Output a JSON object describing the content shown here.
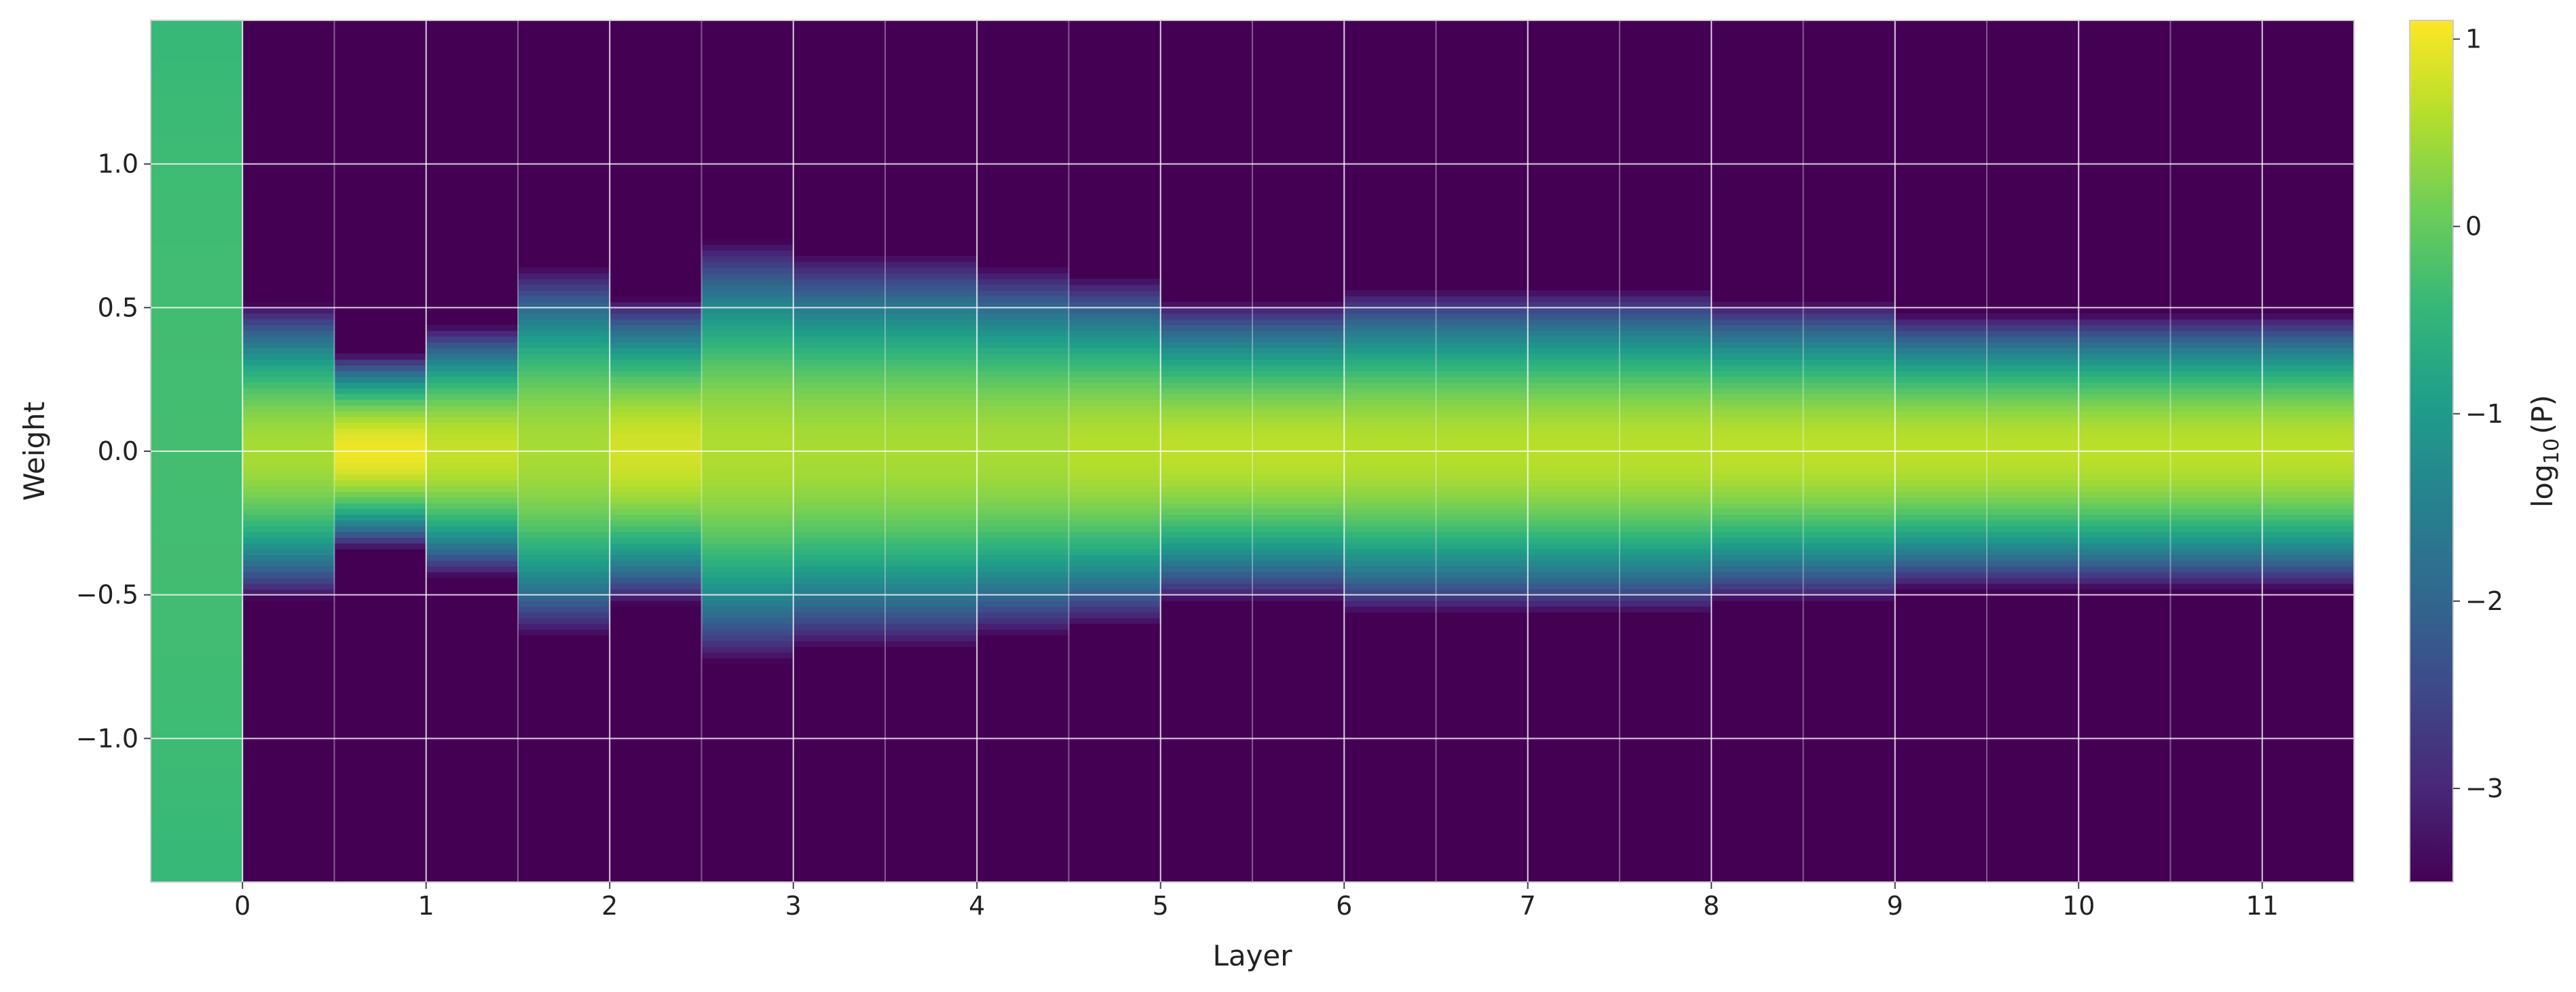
{
  "chart_data": {
    "type": "heatmap",
    "title": "",
    "xlabel": "Layer",
    "ylabel": "Weight",
    "xlim": [
      -0.5,
      11.5
    ],
    "ylim": [
      -1.5,
      1.5
    ],
    "x_ticks": [
      0,
      1,
      2,
      3,
      4,
      5,
      6,
      7,
      8,
      9,
      10,
      11
    ],
    "x_tick_labels": [
      "0",
      "1",
      "2",
      "3",
      "4",
      "5",
      "6",
      "7",
      "8",
      "9",
      "10",
      "11"
    ],
    "y_ticks": [
      -1.0,
      -0.5,
      0.0,
      0.5,
      1.0
    ],
    "y_tick_labels": [
      "−1.0",
      "−0.5",
      "0.0",
      "0.5",
      "1.0"
    ],
    "grid": true,
    "colormap": "viridis",
    "colorbar": {
      "label_main": "log",
      "label_sub": "10",
      "label_arg": "(P)",
      "range": [
        -3.5,
        1.1
      ],
      "ticks": [
        -3,
        -2,
        -1,
        0,
        1
      ],
      "tick_labels": [
        "−3",
        "−2",
        "−1",
        "0",
        "1"
      ]
    },
    "columns_per_layer": 2,
    "columns": [
      {
        "x": -0.25,
        "std": 2.0,
        "peak": -0.3
      },
      {
        "x": 0.25,
        "std": 0.12,
        "peak": 0.5
      },
      {
        "x": 0.75,
        "std": 0.075,
        "peak": 1.0
      },
      {
        "x": 1.25,
        "std": 0.1,
        "peak": 0.7
      },
      {
        "x": 1.75,
        "std": 0.15,
        "peak": 0.5
      },
      {
        "x": 2.25,
        "std": 0.12,
        "peak": 0.8
      },
      {
        "x": 2.75,
        "std": 0.17,
        "peak": 0.55
      },
      {
        "x": 3.25,
        "std": 0.16,
        "peak": 0.5
      },
      {
        "x": 3.75,
        "std": 0.16,
        "peak": 0.5
      },
      {
        "x": 4.25,
        "std": 0.15,
        "peak": 0.5
      },
      {
        "x": 4.75,
        "std": 0.14,
        "peak": 0.6
      },
      {
        "x": 5.25,
        "std": 0.12,
        "peak": 0.65
      },
      {
        "x": 5.75,
        "std": 0.12,
        "peak": 0.65
      },
      {
        "x": 6.25,
        "std": 0.13,
        "peak": 0.6
      },
      {
        "x": 6.75,
        "std": 0.13,
        "peak": 0.6
      },
      {
        "x": 7.25,
        "std": 0.13,
        "peak": 0.62
      },
      {
        "x": 7.75,
        "std": 0.13,
        "peak": 0.62
      },
      {
        "x": 8.25,
        "std": 0.12,
        "peak": 0.65
      },
      {
        "x": 8.75,
        "std": 0.12,
        "peak": 0.65
      },
      {
        "x": 9.25,
        "std": 0.11,
        "peak": 0.65
      },
      {
        "x": 9.75,
        "std": 0.11,
        "peak": 0.65
      },
      {
        "x": 10.25,
        "std": 0.11,
        "peak": 0.65
      },
      {
        "x": 10.75,
        "std": 0.11,
        "peak": 0.65
      },
      {
        "x": 11.25,
        "std": 0.11,
        "peak": 0.65
      }
    ]
  }
}
